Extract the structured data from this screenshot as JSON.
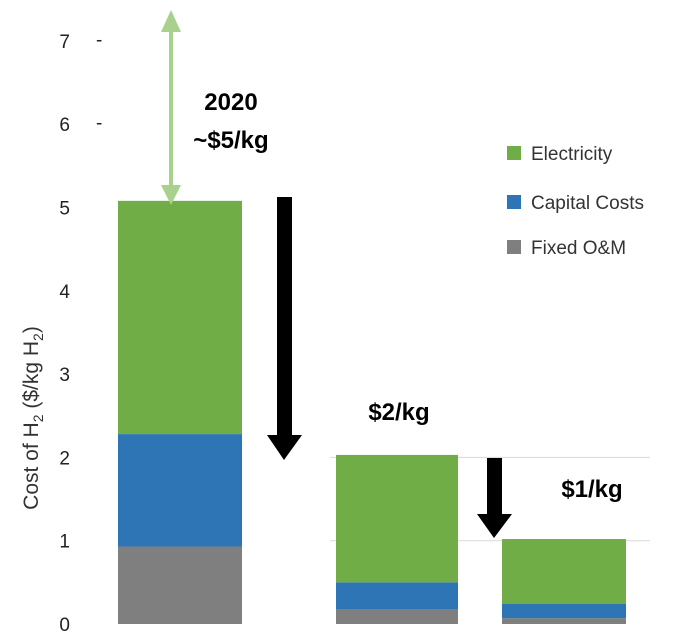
{
  "chart_data": {
    "type": "bar",
    "stacked": true,
    "categories": [
      "",
      "",
      ""
    ],
    "series": [
      {
        "name": "Fixed O&M",
        "color": "#7f7f7f",
        "values": [
          0.93,
          0.18,
          0.07
        ]
      },
      {
        "name": "Capital Costs",
        "color": "#2e75b6",
        "values": [
          1.35,
          0.32,
          0.17
        ]
      },
      {
        "name": "Electricity",
        "color": "#70ad47",
        "values": [
          2.8,
          1.53,
          0.78
        ]
      }
    ],
    "yticks": [
      "0",
      "1",
      "2",
      "3",
      "4",
      "5",
      "6",
      "7"
    ],
    "ylim": [
      0,
      7.2
    ],
    "ylabel": "Cost of H",
    "ylabel_sub1": "2",
    "ylabel_mid": " ($/kg H",
    "ylabel_sub2": "2",
    "ylabel_end": ")",
    "grid": true,
    "legend_position": "right",
    "annotations": {
      "first_year": "2020",
      "first_price": "~$5/kg",
      "second_price": "$2/kg",
      "third_price": "$1/kg"
    },
    "arrow_colors": {
      "up": "#a9d18e",
      "down": "#000000"
    }
  }
}
